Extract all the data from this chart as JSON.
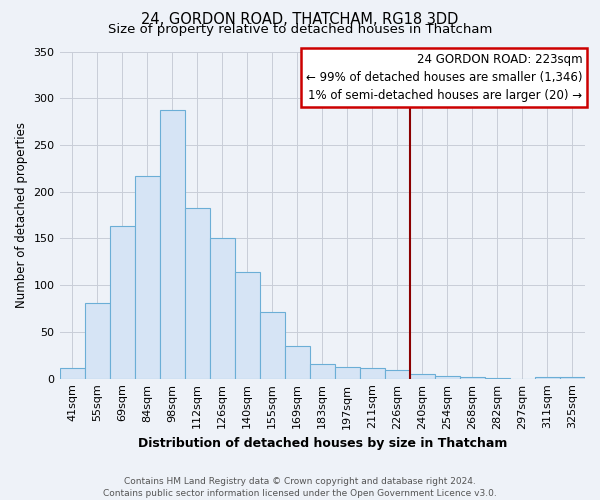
{
  "title": "24, GORDON ROAD, THATCHAM, RG18 3DD",
  "subtitle": "Size of property relative to detached houses in Thatcham",
  "xlabel": "Distribution of detached houses by size in Thatcham",
  "ylabel": "Number of detached properties",
  "bar_labels": [
    "41sqm",
    "55sqm",
    "69sqm",
    "84sqm",
    "98sqm",
    "112sqm",
    "126sqm",
    "140sqm",
    "155sqm",
    "169sqm",
    "183sqm",
    "197sqm",
    "211sqm",
    "226sqm",
    "240sqm",
    "254sqm",
    "268sqm",
    "282sqm",
    "297sqm",
    "311sqm",
    "325sqm"
  ],
  "bar_values": [
    11,
    81,
    163,
    217,
    287,
    183,
    150,
    114,
    71,
    35,
    16,
    12,
    11,
    9,
    5,
    3,
    2,
    1,
    0,
    2,
    2
  ],
  "bar_color": "#d6e4f5",
  "bar_edge_color": "#6baed6",
  "vline_color": "#8b0000",
  "vline_x_index": 13,
  "ylim": [
    0,
    350
  ],
  "yticks": [
    0,
    50,
    100,
    150,
    200,
    250,
    300,
    350
  ],
  "annotation_title": "24 GORDON ROAD: 223sqm",
  "annotation_line1": "← 99% of detached houses are smaller (1,346)",
  "annotation_line2": "1% of semi-detached houses are larger (20) →",
  "annotation_box_color": "#ffffff",
  "annotation_border_color": "#cc0000",
  "footer_line1": "Contains HM Land Registry data © Crown copyright and database right 2024.",
  "footer_line2": "Contains public sector information licensed under the Open Government Licence v3.0.",
  "bg_color": "#eef2f8",
  "grid_color": "#c8cdd8",
  "title_fontsize": 10.5,
  "subtitle_fontsize": 9.5,
  "xlabel_fontsize": 9,
  "ylabel_fontsize": 8.5,
  "tick_fontsize": 8,
  "annot_fontsize": 8.5,
  "footer_fontsize": 6.5
}
